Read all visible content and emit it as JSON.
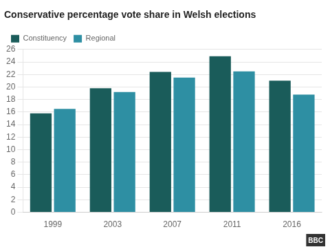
{
  "chart_data": {
    "type": "bar",
    "title": "Conservative percentage vote share in Welsh elections",
    "categories": [
      "1999",
      "2003",
      "2007",
      "2011",
      "2016"
    ],
    "series": [
      {
        "name": "Constituency",
        "color": "#1a5c5a",
        "values": [
          15.8,
          19.8,
          22.4,
          24.9,
          21.0
        ]
      },
      {
        "name": "Regional",
        "color": "#2e8fa3",
        "values": [
          16.5,
          19.2,
          21.5,
          22.5,
          18.8
        ]
      }
    ],
    "ylim": [
      0,
      26
    ],
    "yticks": [
      0,
      2,
      4,
      6,
      8,
      10,
      12,
      14,
      16,
      18,
      20,
      22,
      24,
      26
    ],
    "grid": true,
    "legend": "upper left",
    "annotations": [
      "BBC"
    ]
  }
}
